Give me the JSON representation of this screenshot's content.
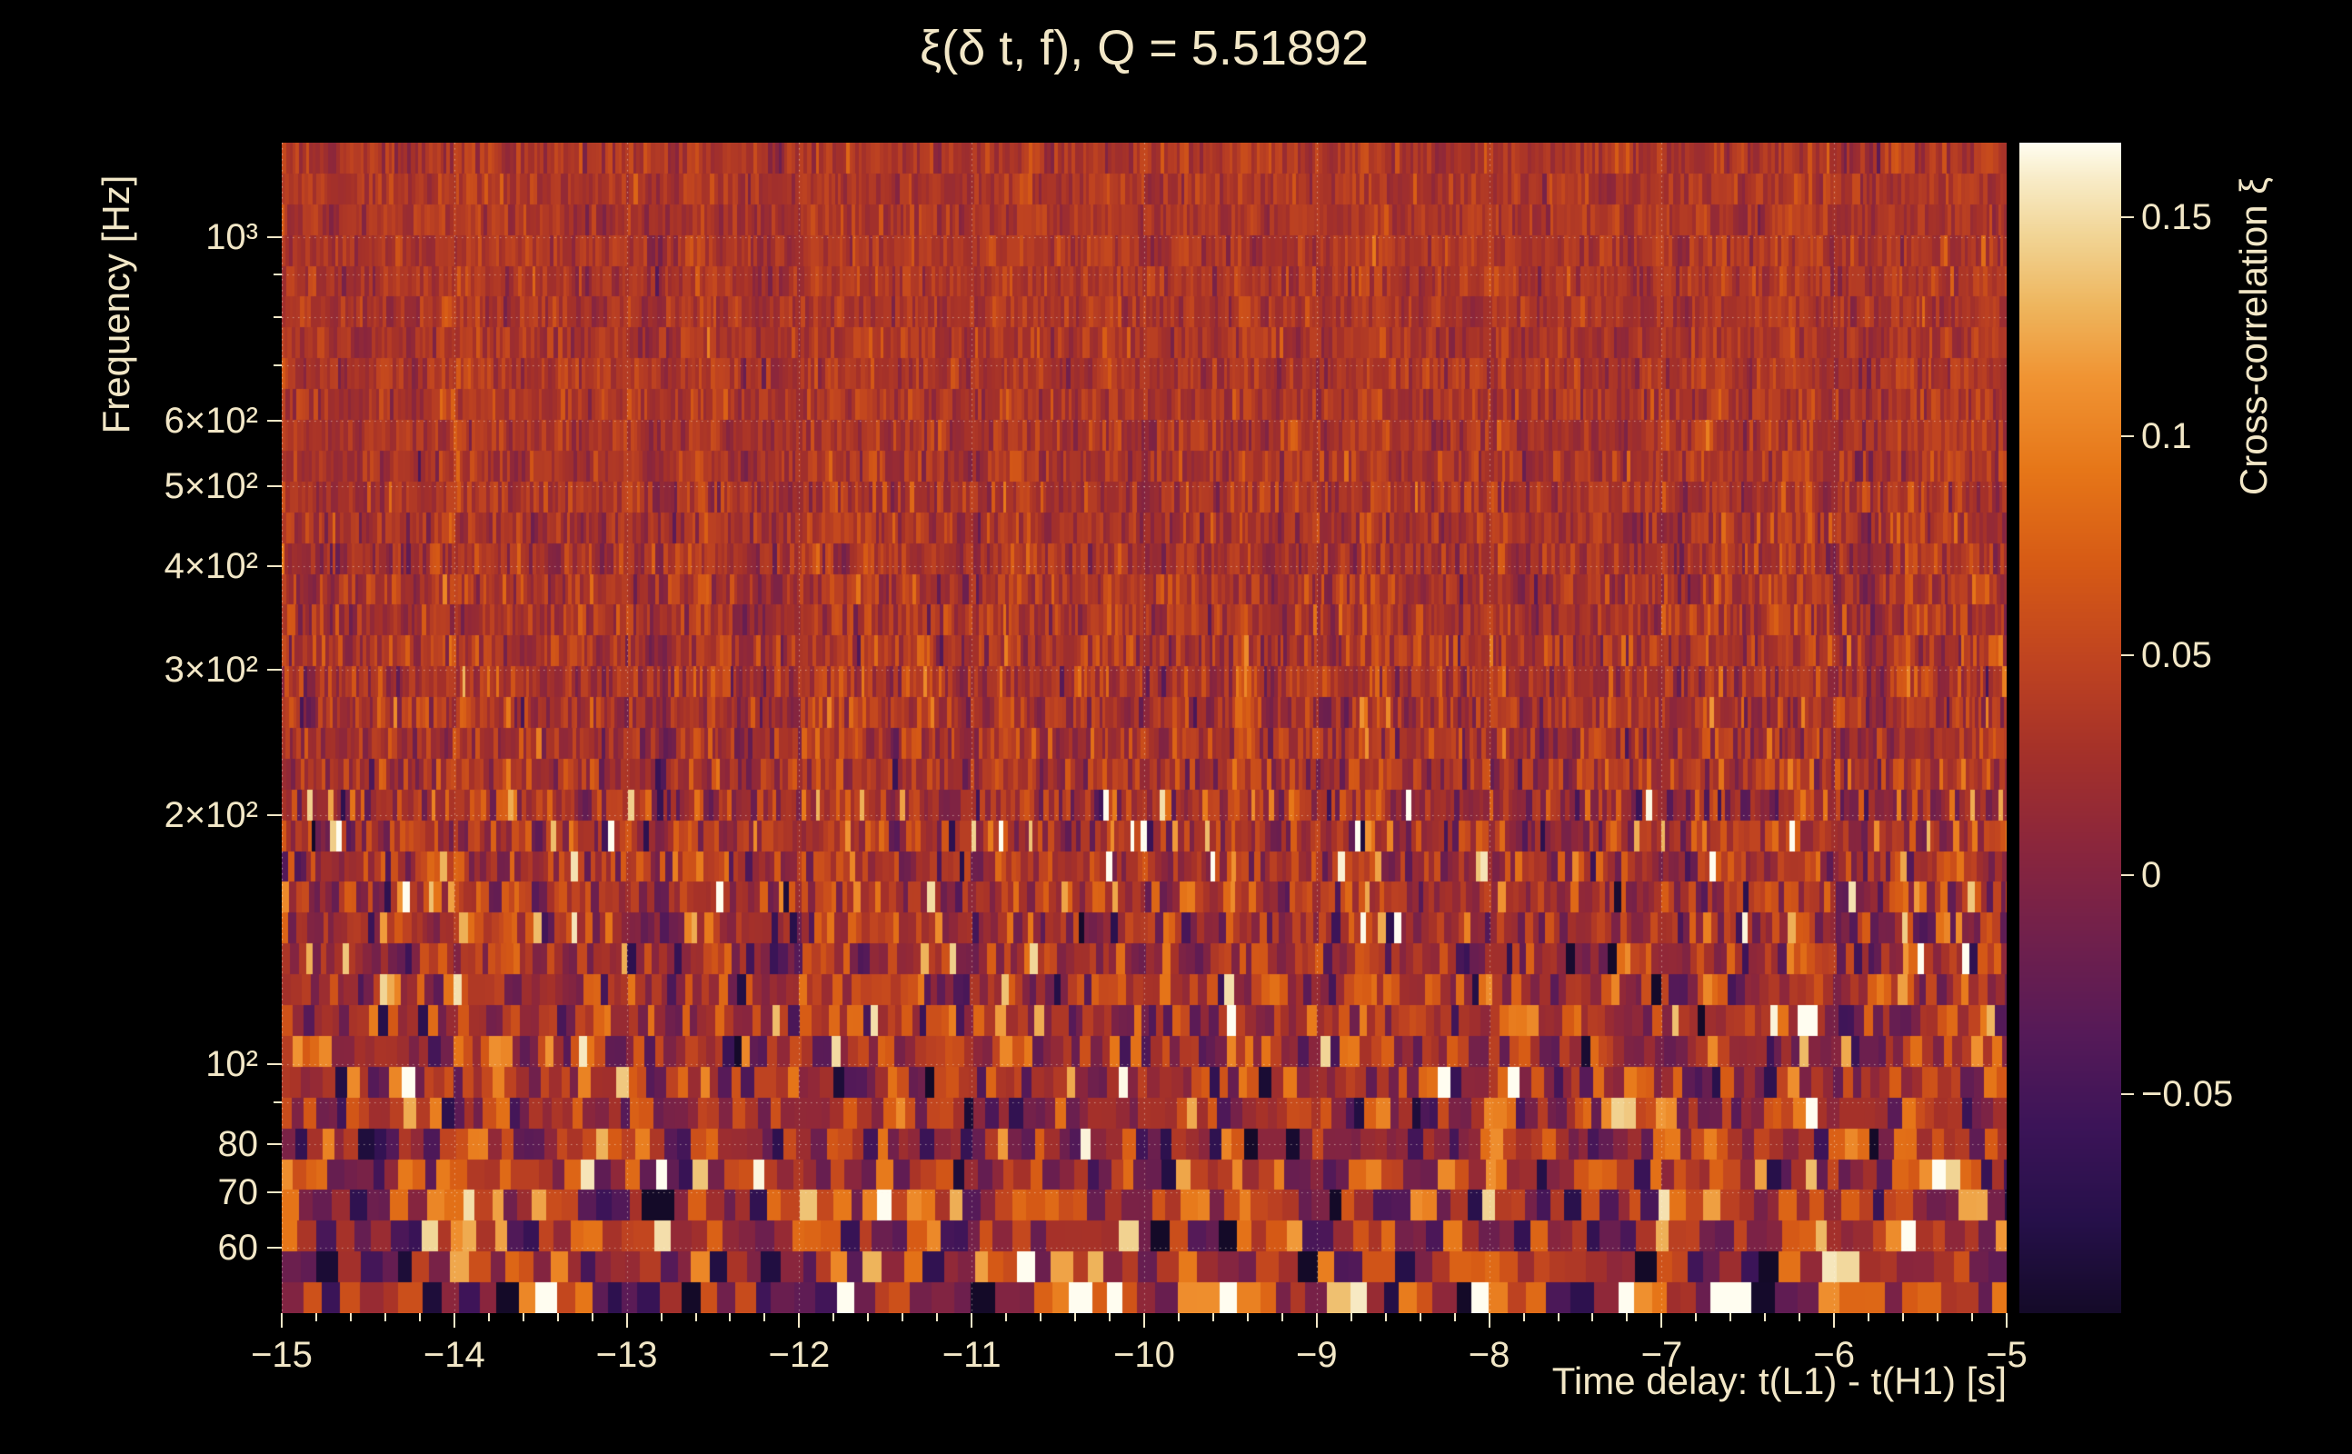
{
  "chart_data": {
    "type": "heatmap",
    "title": "ξ(δ t, f), Q = 5.51892",
    "q_value": 5.51892,
    "xlabel": "Time delay: t(L1) - t(H1) [s]",
    "ylabel": "Frequency [Hz]",
    "colorbar_label": "Cross-correlation ξ",
    "x_range": [
      -15,
      -5
    ],
    "x_ticks": [
      -15,
      -14,
      -13,
      -12,
      -11,
      -10,
      -9,
      -8,
      -7,
      -6,
      -5
    ],
    "x_tick_labels": [
      "−15",
      "−14",
      "−13",
      "−12",
      "−11",
      "−10",
      "−9",
      "−8",
      "−7",
      "−6",
      "−5"
    ],
    "x_minor_tick_step": 0.2,
    "y_scale": "log",
    "y_range": [
      50,
      1300
    ],
    "y_ticks": [
      1000,
      600,
      500,
      400,
      300,
      200,
      100,
      80,
      70,
      60
    ],
    "y_tick_labels": [
      "10³",
      "6×10²",
      "5×10²",
      "4×10²",
      "3×10²",
      "2×10²",
      "10²",
      "80",
      "70",
      "60"
    ],
    "y_minor_ticks": [
      900,
      800,
      700,
      90
    ],
    "grid": "dotted-white",
    "color_range": [
      -0.1,
      0.167
    ],
    "colorbar_ticks": [
      0.15,
      0.1,
      0.05,
      0,
      -0.05
    ],
    "colorbar_tick_labels": [
      "0.15",
      "0.1",
      "0.05",
      "0",
      "−0.05"
    ],
    "colormap_stops": [
      [
        0.0,
        "#140a28"
      ],
      [
        0.08,
        "#26104a"
      ],
      [
        0.16,
        "#3c1458"
      ],
      [
        0.24,
        "#561a58"
      ],
      [
        0.32,
        "#70204c"
      ],
      [
        0.4,
        "#8b263c"
      ],
      [
        0.48,
        "#a53129"
      ],
      [
        0.56,
        "#c04420"
      ],
      [
        0.64,
        "#d65a15"
      ],
      [
        0.72,
        "#e67618"
      ],
      [
        0.8,
        "#f09433"
      ],
      [
        0.86,
        "#eeb55d"
      ],
      [
        0.92,
        "#f1d494"
      ],
      [
        0.97,
        "#f8ecc8"
      ],
      [
        1.0,
        "#fffdf0"
      ]
    ],
    "description": "Stochastic cross-correlation noise map: fine vertical Q-transform tiles at high frequency, coarser higher-contrast tiles with bright and dark streaks at low frequency",
    "noise": {
      "seed": 1337,
      "bands": 38,
      "mean": 0.035,
      "sigma_top": 0.014,
      "sigma_bottom": 0.06,
      "tile_width_scale": 200,
      "tile_width_min": 4,
      "tile_width_max": 26
    },
    "text_color": "#f2e7c7",
    "background_color": "#000000"
  }
}
